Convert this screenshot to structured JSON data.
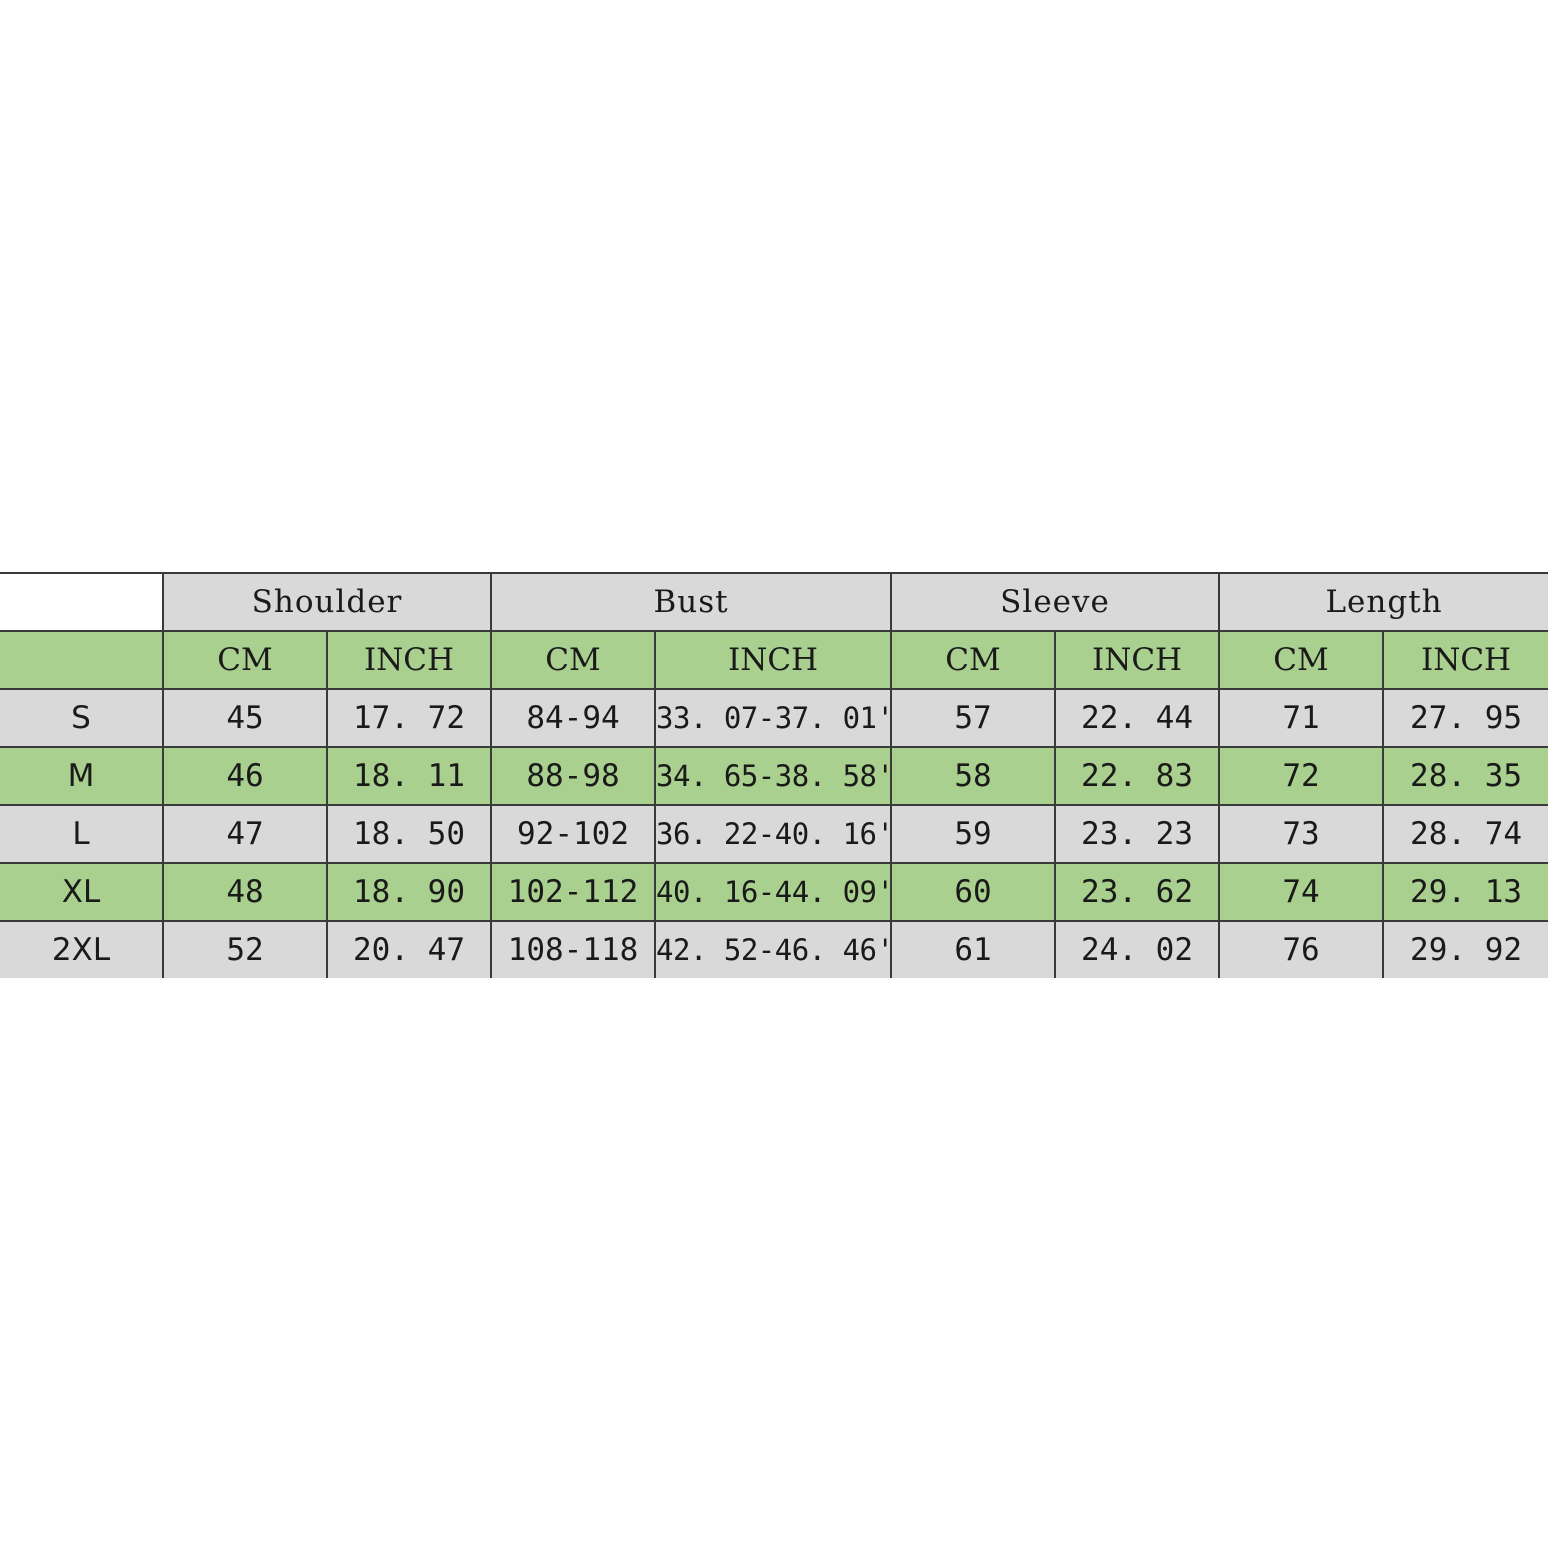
{
  "headers": {
    "groups": [
      "Shoulder",
      "Bust",
      "Sleeve",
      "Length"
    ],
    "units": [
      "CM",
      "INCH",
      "CM",
      "INCH",
      "CM",
      "INCH",
      "CM",
      "INCH"
    ]
  },
  "rows": [
    {
      "size": "S",
      "shoulder_cm": "45",
      "shoulder_inch": "17. 72",
      "bust_cm": "84-94",
      "bust_inch": "33. 07-37. 01''",
      "sleeve_cm": "57",
      "sleeve_inch": "22. 44",
      "length_cm": "71",
      "length_inch": "27. 95"
    },
    {
      "size": "M",
      "shoulder_cm": "46",
      "shoulder_inch": "18. 11",
      "bust_cm": "88-98",
      "bust_inch": "34. 65-38. 58''",
      "sleeve_cm": "58",
      "sleeve_inch": "22. 83",
      "length_cm": "72",
      "length_inch": "28. 35"
    },
    {
      "size": "L",
      "shoulder_cm": "47",
      "shoulder_inch": "18. 50",
      "bust_cm": "92-102",
      "bust_inch": "36. 22-40. 16''",
      "sleeve_cm": "59",
      "sleeve_inch": "23. 23",
      "length_cm": "73",
      "length_inch": "28. 74"
    },
    {
      "size": "XL",
      "shoulder_cm": "48",
      "shoulder_inch": "18. 90",
      "bust_cm": "102-112",
      "bust_inch": "40. 16-44. 09''",
      "sleeve_cm": "60",
      "sleeve_inch": "23. 62",
      "length_cm": "74",
      "length_inch": "29. 13"
    },
    {
      "size": "2XL",
      "shoulder_cm": "52",
      "shoulder_inch": "20. 47",
      "bust_cm": "108-118",
      "bust_inch": "42. 52-46. 46''",
      "sleeve_cm": "61",
      "sleeve_inch": "24. 02",
      "length_cm": "76",
      "length_inch": "29. 92"
    }
  ],
  "colors": {
    "gray_row": "#d9d9d9",
    "green_row": "#a9d08e",
    "border": "#3a3a3a",
    "text": "#1a1a1a"
  }
}
